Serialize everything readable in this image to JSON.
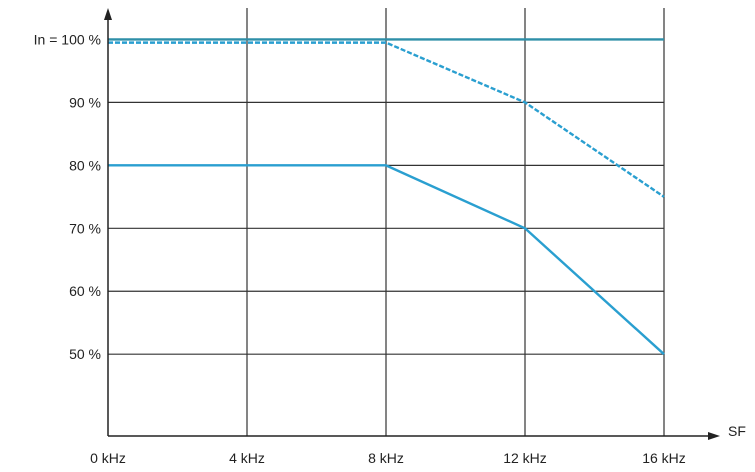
{
  "chart_data": {
    "type": "line",
    "title": "",
    "xlabel": "SF",
    "ylabel": "",
    "x": [
      0,
      4,
      8,
      12,
      16
    ],
    "x_tick_labels": [
      "0 kHz",
      "4 kHz",
      "8 kHz",
      "12 kHz",
      "16 kHz"
    ],
    "xlim": [
      0,
      16
    ],
    "y_ticks": [
      50,
      60,
      70,
      80,
      90,
      100
    ],
    "y_tick_labels": [
      "50 %",
      "60 %",
      "70 %",
      "80 %",
      "90 %",
      "In = 100 %"
    ],
    "ylim": [
      37,
      105
    ],
    "grid": true,
    "legend": "none",
    "series": [
      {
        "x": [
          0,
          16
        ],
        "values": [
          100,
          100
        ],
        "style": "solid",
        "color": "#2f8fa8"
      },
      {
        "x": [
          0,
          8,
          12,
          16
        ],
        "values": [
          99.5,
          99.5,
          90,
          75
        ],
        "style": "dashed",
        "color": "#2a9fd0"
      },
      {
        "x": [
          0,
          8,
          12,
          16
        ],
        "values": [
          80,
          80,
          70,
          50
        ],
        "style": "solid",
        "color": "#2a9fd0"
      }
    ]
  }
}
